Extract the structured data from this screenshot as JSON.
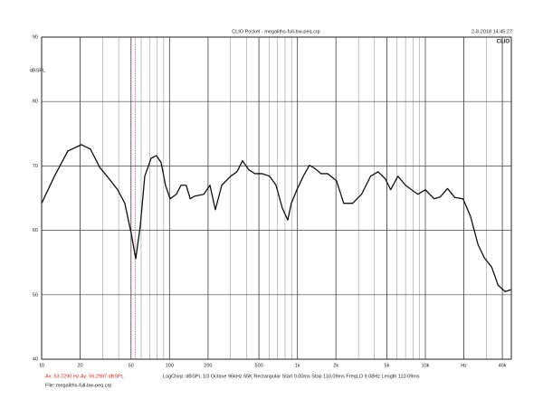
{
  "chart_data": {
    "type": "line",
    "title": "CLIO Pocket - megaliths-full-bw-peq.crp",
    "timestamp": "2-8-2018 14:45:27",
    "logo": "CLIO",
    "ylabel": "dBSPL",
    "xscale": "log",
    "grid": true,
    "minor_grid": true,
    "xlim": [
      10,
      47000
    ],
    "ylim": [
      40,
      90
    ],
    "yticks": [
      40,
      50,
      60,
      70,
      80,
      90
    ],
    "xticks": [
      10,
      20,
      50,
      100,
      200,
      500,
      {
        "value": 1000,
        "label": "1k"
      },
      {
        "value": 2000,
        "label": "2k"
      },
      {
        "value": 5000,
        "label": "5k"
      },
      {
        "value": 10000,
        "label": "10k"
      },
      {
        "value": 20000,
        "label": "Hz"
      },
      {
        "value": 40000,
        "label": "40k"
      }
    ],
    "cursor": {
      "x": 53.729,
      "y": 56.2987,
      "color": "#cc2222",
      "label": "Ax: 53.7290 Hz   Ay: 56.2987 dBSPL"
    },
    "settings_line": "LogChirp:  dBSPL   1/3 Octave   96kHz   65K   Rectangular   Start 0.00ms   Stop 110.09ms   FreqLO 9.08Hz   Length 110.09ms",
    "file_line": "File: megaliths-full-bw-peq.crp",
    "series": [
      {
        "name": "megaliths-full-bw-peq",
        "color": "#111111",
        "x": [
          10,
          12.6,
          16,
          20.5,
          24.1,
          28.4,
          33.4,
          39.3,
          44.7,
          50.2,
          54.4,
          59,
          64,
          71.8,
          79,
          86,
          93,
          101,
          113,
          123,
          135,
          145,
          157,
          185,
          207,
          228,
          256,
          300,
          337,
          372,
          416,
          465,
          530,
          606,
          680,
          760,
          840,
          895,
          990,
          1110,
          1240,
          1370,
          1530,
          1720,
          2020,
          2300,
          2700,
          3170,
          3730,
          4270,
          4860,
          5360,
          6100,
          7000,
          7800,
          8750,
          10000,
          11700,
          13100,
          14900,
          17000,
          19700,
          22600,
          25800,
          29000,
          33000,
          37000,
          42000,
          47000
        ],
        "values": [
          64.2,
          68.4,
          72.3,
          73.3,
          72.6,
          69.8,
          68.1,
          66.3,
          64.2,
          59.5,
          55.6,
          60.6,
          68.4,
          71.2,
          71.6,
          70.5,
          67,
          64.9,
          65.6,
          67,
          67,
          64.9,
          65.3,
          65.6,
          67,
          63.2,
          67,
          68.4,
          69.1,
          70.8,
          69.4,
          68.8,
          68.8,
          68.4,
          67,
          63.5,
          61.6,
          64.2,
          66.3,
          68.4,
          70.1,
          69.6,
          68.8,
          68.8,
          67.7,
          64.2,
          64.2,
          65.6,
          68.4,
          69.1,
          68,
          66.3,
          68.4,
          67,
          66.3,
          65.6,
          66.3,
          64.9,
          65.2,
          66.5,
          65.1,
          64.9,
          62.1,
          57.8,
          55.7,
          54.3,
          51.5,
          50.5,
          50.8
        ]
      }
    ]
  }
}
